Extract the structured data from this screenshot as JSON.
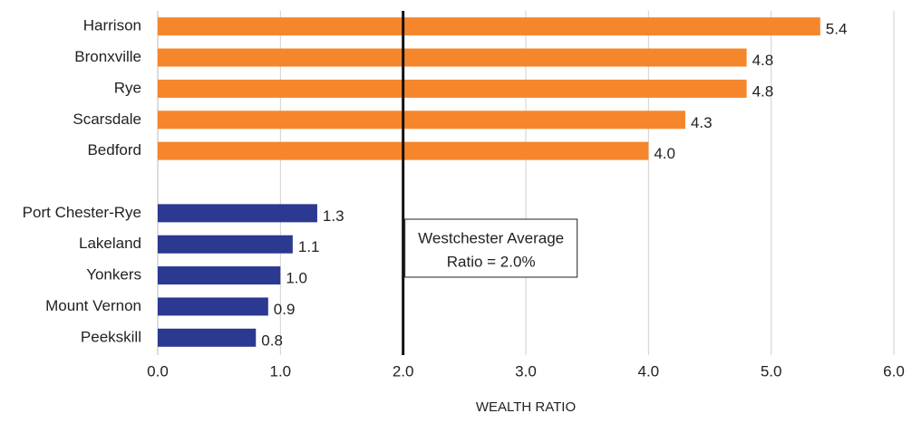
{
  "chart_data": {
    "type": "hbar",
    "categories": [
      "Harrison",
      "Bronxville",
      "Rye",
      "Scarsdale",
      "Bedford",
      null,
      "Port Chester-Rye",
      "Lakeland",
      "Yonkers",
      "Mount Vernon",
      "Peekskill"
    ],
    "values": [
      5.4,
      4.8,
      4.8,
      4.3,
      4.0,
      null,
      1.3,
      1.1,
      1.0,
      0.9,
      0.8
    ],
    "value_labels": [
      "5.4",
      "4.8",
      "4.8",
      "4.3",
      "4.0",
      null,
      "1.3",
      "1.1",
      "1.0",
      "0.9",
      "0.8"
    ],
    "colors": [
      "#f5862c",
      "#f5862c",
      "#f5862c",
      "#f5862c",
      "#f5862c",
      null,
      "#2b3990",
      "#2b3990",
      "#2b3990",
      "#2b3990",
      "#2b3990"
    ],
    "xlim": [
      0,
      6
    ],
    "xticks": [
      {
        "value": 0,
        "label": "0.0"
      },
      {
        "value": 1,
        "label": "1.0"
      },
      {
        "value": 2,
        "label": "2.0"
      },
      {
        "value": 3,
        "label": "3.0"
      },
      {
        "value": 4,
        "label": "4.0"
      },
      {
        "value": 5,
        "label": "5.0"
      },
      {
        "value": 6,
        "label": "6.0"
      }
    ],
    "x_label": "WEALTH RATIO",
    "grid": true,
    "reference_line": {
      "value": 2,
      "label": [
        "Westchester Average",
        "Ratio = 2.0%"
      ]
    }
  }
}
